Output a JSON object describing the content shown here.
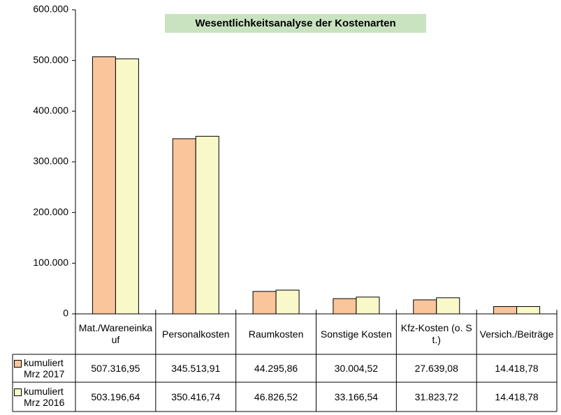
{
  "chart_data": {
    "type": "bar",
    "title": "Wesentlichkeitsanalyse der Kostenarten",
    "categories": [
      "Mat./Wareneinkauf",
      "Personalkosten",
      "Raumkosten",
      "Sonstige Kosten",
      "Kfz-Kosten (o. St.)",
      "Versich./Beiträge"
    ],
    "series": [
      {
        "name": "kumuliert Mrz 2017",
        "color": "#fac59b",
        "values": [
          507316.95,
          345513.91,
          44295.86,
          30004.52,
          27639.08,
          14418.78
        ],
        "value_labels": [
          "507.316,95",
          "345.513,91",
          "44.295,86",
          "30.004,52",
          "27.639,08",
          "14.418,78"
        ]
      },
      {
        "name": "kumuliert Mrz 2016",
        "color": "#f8f8c9",
        "values": [
          503196.64,
          350416.74,
          46826.52,
          33166.54,
          31823.72,
          14418.78
        ],
        "value_labels": [
          "503.196,64",
          "350.416,74",
          "46.826,52",
          "33.166,54",
          "31.823,72",
          "14.418,78"
        ]
      }
    ],
    "ylim": [
      0,
      600000
    ],
    "yticks": [
      {
        "value": 0,
        "label": "0"
      },
      {
        "value": 100000,
        "label": "100.000"
      },
      {
        "value": 200000,
        "label": "200.000"
      },
      {
        "value": 300000,
        "label": "300.000"
      },
      {
        "value": 400000,
        "label": "400.000"
      },
      {
        "value": 500000,
        "label": "500.000"
      },
      {
        "value": 600000,
        "label": "600.000"
      }
    ],
    "grid": false
  }
}
